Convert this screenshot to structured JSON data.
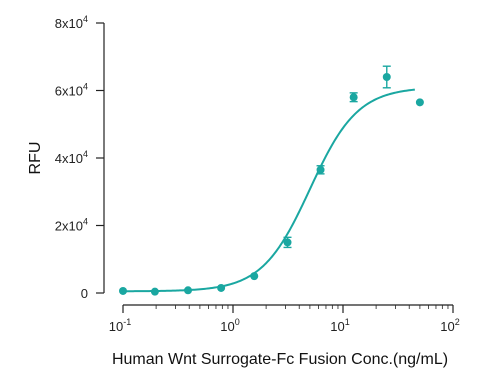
{
  "chart_data": {
    "type": "scatter",
    "title": "",
    "xlabel": "Human Wnt Surrogate-Fc Fusion Conc.(ng/mL)",
    "ylabel": "RFU",
    "x_scale": "log",
    "xlim": [
      0.1,
      100
    ],
    "ylim": [
      0,
      80000
    ],
    "grid": false,
    "x_ticks": [
      {
        "value": 0.1,
        "base": "10",
        "exp": "-1"
      },
      {
        "value": 1,
        "base": "10",
        "exp": "0"
      },
      {
        "value": 10,
        "base": "10",
        "exp": "1"
      },
      {
        "value": 100,
        "base": "10",
        "exp": "2"
      }
    ],
    "y_ticks": [
      {
        "value": 0,
        "mant": "0",
        "exp": ""
      },
      {
        "value": 20000,
        "mant": "2x10",
        "exp": "4"
      },
      {
        "value": 40000,
        "mant": "4x10",
        "exp": "4"
      },
      {
        "value": 60000,
        "mant": "6x10",
        "exp": "4"
      },
      {
        "value": 80000,
        "mant": "8x10",
        "exp": "4"
      }
    ],
    "series": [
      {
        "color": "#1aa7a1",
        "points": [
          {
            "x": 0.1,
            "y": 600,
            "err": 0
          },
          {
            "x": 0.195,
            "y": 400,
            "err": 0
          },
          {
            "x": 0.39,
            "y": 800,
            "err": 0
          },
          {
            "x": 0.78,
            "y": 1500,
            "err": 0
          },
          {
            "x": 1.56,
            "y": 5000,
            "err": 0
          },
          {
            "x": 3.13,
            "y": 15000,
            "err": 1500
          },
          {
            "x": 6.25,
            "y": 36500,
            "err": 1200
          },
          {
            "x": 12.5,
            "y": 58000,
            "err": 1300
          },
          {
            "x": 25,
            "y": 64000,
            "err": 3200
          },
          {
            "x": 50,
            "y": 56500,
            "err": 0
          }
        ],
        "fit": {
          "bottom": 500,
          "top": 61000,
          "ec50": 5.0,
          "hill": 2.0,
          "x_end": 45
        }
      }
    ]
  }
}
